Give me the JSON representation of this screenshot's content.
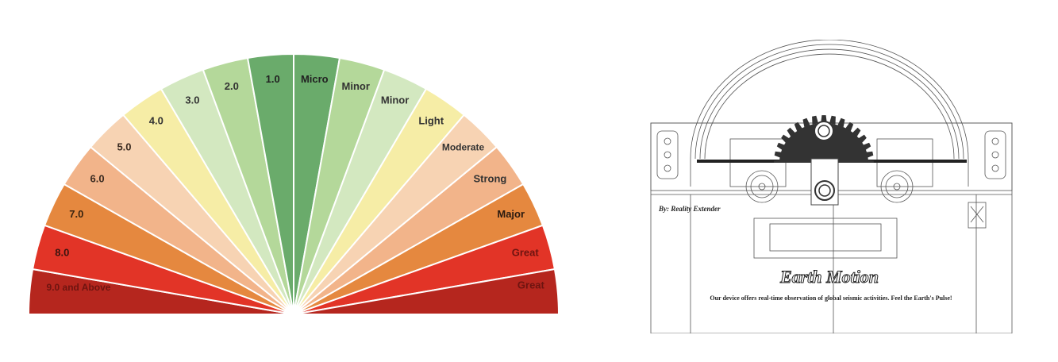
{
  "gauge": {
    "wedges": [
      {
        "label": "9.0 and Above",
        "color": "#b5261e",
        "text_color": "#6e1410",
        "label_weight": "bold"
      },
      {
        "label": "8.0",
        "color": "#e23427",
        "text_color": "#3a1410"
      },
      {
        "label": "7.0",
        "color": "#e5883f",
        "text_color": "#3a2410"
      },
      {
        "label": "6.0",
        "color": "#f2b48a",
        "text_color": "#3a2a20"
      },
      {
        "label": "5.0",
        "color": "#f7d3b3",
        "text_color": "#3a2a20"
      },
      {
        "label": "4.0",
        "color": "#f6eda6",
        "text_color": "#333333"
      },
      {
        "label": "3.0",
        "color": "#d3e8c0",
        "text_color": "#333333"
      },
      {
        "label": "2.0",
        "color": "#b4d89a",
        "text_color": "#333333"
      },
      {
        "label": "1.0",
        "color": "#6aab6b",
        "text_color": "#222222"
      },
      {
        "label": "Micro",
        "color": "#6aab6b",
        "text_color": "#222222"
      },
      {
        "label": "Minor",
        "color": "#b4d89a",
        "text_color": "#333333"
      },
      {
        "label": "Minor",
        "color": "#d3e8c0",
        "text_color": "#333333"
      },
      {
        "label": "Light",
        "color": "#f6eda6",
        "text_color": "#333333"
      },
      {
        "label": "Moderate",
        "color": "#f7d3b3",
        "text_color": "#333333"
      },
      {
        "label": "Strong",
        "color": "#f2b48a",
        "text_color": "#333333"
      },
      {
        "label": "Major",
        "color": "#e5883f",
        "text_color": "#2a1a10"
      },
      {
        "label": "Great",
        "color": "#e23427",
        "text_color": "#6e1410"
      },
      {
        "label": "Great",
        "color": "#b5261e",
        "text_color": "#6e1410"
      }
    ]
  },
  "device": {
    "credit": "By: Reality Extender",
    "title": "Earth Motion",
    "tagline": "Our device offers real-time observation of global seismic activities. Feel the Earth's Pulse!"
  }
}
